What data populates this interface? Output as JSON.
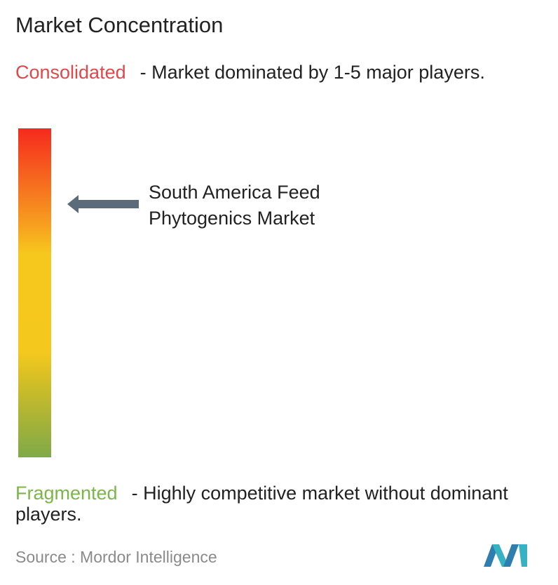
{
  "title": "Market Concentration",
  "consolidated": {
    "label": "Consolidated",
    "description": "- Market dominated by 1-5 major players."
  },
  "market": {
    "label_lines": [
      "South America Feed",
      "Phytogenics Market"
    ]
  },
  "fragmented": {
    "label": "Fragmented",
    "description": "- Highly competitive market without dominant players."
  },
  "source": {
    "label": "Source :",
    "name": "Mordor Intelligence"
  }
}
